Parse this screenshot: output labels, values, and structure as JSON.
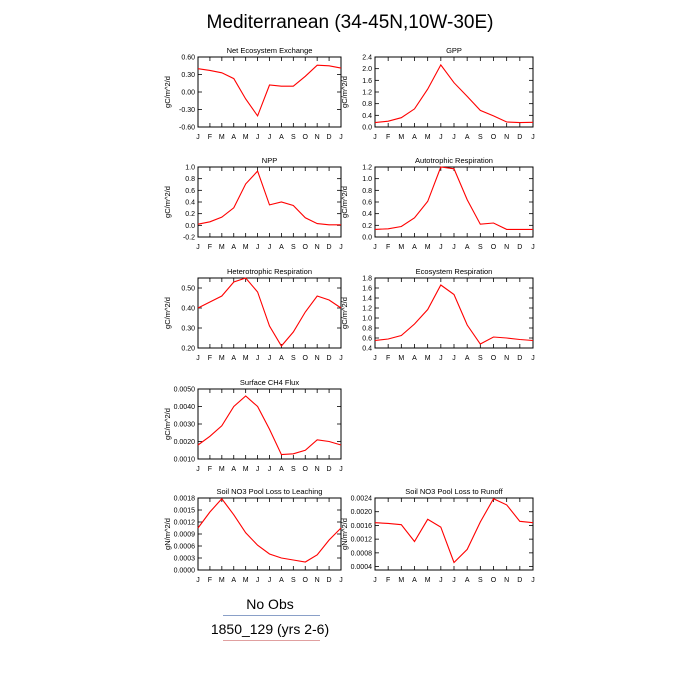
{
  "page_title": "Mediterranean (34-45N,10W-30E)",
  "legend": {
    "no_obs": "No Obs",
    "run": "1850_129 (yrs 2-6)"
  },
  "colors": {
    "series": "#ff0000",
    "axis": "#000000"
  },
  "chart_data": [
    {
      "type": "line",
      "title": "Net Ecosystem Exchange",
      "ylabel": "gC/m^2/d",
      "x": [
        "J",
        "F",
        "M",
        "A",
        "M",
        "J",
        "J",
        "A",
        "S",
        "O",
        "N",
        "D",
        "J"
      ],
      "ylim": [
        -0.6,
        0.6
      ],
      "yticks": [
        0.6,
        0.3,
        0.0,
        -0.3,
        -0.6
      ],
      "ytick_labels": [
        "0.60",
        "0.30",
        "0.00",
        "-0.30",
        "-0.60"
      ],
      "series": [
        {
          "values": [
            0.4,
            0.37,
            0.33,
            0.23,
            -0.12,
            -0.41,
            0.12,
            0.1,
            0.1,
            0.27,
            0.46,
            0.45,
            0.41
          ]
        }
      ]
    },
    {
      "type": "line",
      "title": "GPP",
      "ylabel": "gC/m^2/d",
      "x": [
        "J",
        "F",
        "M",
        "A",
        "M",
        "J",
        "J",
        "A",
        "S",
        "O",
        "N",
        "D",
        "J"
      ],
      "ylim": [
        0.0,
        2.4
      ],
      "yticks": [
        2.4,
        2.0,
        1.6,
        1.2,
        0.8,
        0.4,
        0.0
      ],
      "ytick_labels": [
        "2.4",
        "2.0",
        "1.6",
        "1.2",
        "0.8",
        "0.4",
        "0.0"
      ],
      "series": [
        {
          "values": [
            0.15,
            0.2,
            0.32,
            0.62,
            1.3,
            2.13,
            1.52,
            1.05,
            0.57,
            0.38,
            0.17,
            0.15,
            0.16
          ]
        }
      ]
    },
    {
      "type": "line",
      "title": "NPP",
      "ylabel": "gC/m^2/d",
      "x": [
        "J",
        "F",
        "M",
        "A",
        "M",
        "J",
        "J",
        "A",
        "S",
        "O",
        "N",
        "D",
        "J"
      ],
      "ylim": [
        -0.2,
        1.0
      ],
      "yticks": [
        1.0,
        0.8,
        0.6,
        0.4,
        0.2,
        0.0,
        -0.2
      ],
      "ytick_labels": [
        "1.0",
        "0.8",
        "0.6",
        "0.4",
        "0.2",
        "0.0",
        "-0.2"
      ],
      "series": [
        {
          "values": [
            0.02,
            0.06,
            0.14,
            0.3,
            0.71,
            0.93,
            0.35,
            0.4,
            0.34,
            0.13,
            0.03,
            0.01,
            0.01
          ]
        }
      ]
    },
    {
      "type": "line",
      "title": "Autotrophic Respiration",
      "ylabel": "gC/m^2/d",
      "x": [
        "J",
        "F",
        "M",
        "A",
        "M",
        "J",
        "J",
        "A",
        "S",
        "O",
        "N",
        "D",
        "J"
      ],
      "ylim": [
        0.0,
        1.2
      ],
      "yticks": [
        1.2,
        1.0,
        0.8,
        0.6,
        0.4,
        0.2,
        0.0
      ],
      "ytick_labels": [
        "1.2",
        "1.0",
        "0.8",
        "0.6",
        "0.4",
        "0.2",
        "0.0"
      ],
      "series": [
        {
          "values": [
            0.13,
            0.14,
            0.18,
            0.33,
            0.61,
            1.2,
            1.17,
            0.64,
            0.22,
            0.24,
            0.13,
            0.13,
            0.13
          ]
        }
      ]
    },
    {
      "type": "line",
      "title": "Heterotrophic Respiration",
      "ylabel": "gC/m^2/d",
      "x": [
        "J",
        "F",
        "M",
        "A",
        "M",
        "J",
        "J",
        "A",
        "S",
        "O",
        "N",
        "D",
        "J"
      ],
      "ylim": [
        0.2,
        0.55
      ],
      "yticks": [
        0.5,
        0.4,
        0.3,
        0.2
      ],
      "ytick_labels": [
        "0.50",
        "0.40",
        "0.30",
        "0.20"
      ],
      "series": [
        {
          "values": [
            0.4,
            0.43,
            0.46,
            0.53,
            0.55,
            0.48,
            0.31,
            0.21,
            0.28,
            0.38,
            0.46,
            0.44,
            0.4
          ]
        }
      ]
    },
    {
      "type": "line",
      "title": "Ecosystem Respiration",
      "ylabel": "gC/m^2/d",
      "x": [
        "J",
        "F",
        "M",
        "A",
        "M",
        "J",
        "J",
        "A",
        "S",
        "O",
        "N",
        "D",
        "J"
      ],
      "ylim": [
        0.4,
        1.8
      ],
      "yticks": [
        1.8,
        1.6,
        1.4,
        1.2,
        1.0,
        0.8,
        0.6,
        0.4
      ],
      "ytick_labels": [
        "1.8",
        "1.6",
        "1.4",
        "1.2",
        "1.0",
        "0.8",
        "0.6",
        "0.4"
      ],
      "series": [
        {
          "values": [
            0.55,
            0.58,
            0.65,
            0.88,
            1.17,
            1.66,
            1.47,
            0.86,
            0.48,
            0.62,
            0.6,
            0.57,
            0.55
          ]
        }
      ]
    },
    {
      "type": "line",
      "title": "Surface CH4 Flux",
      "ylabel": "gC/m^2/d",
      "x": [
        "J",
        "F",
        "M",
        "A",
        "M",
        "J",
        "J",
        "A",
        "S",
        "O",
        "N",
        "D",
        "J"
      ],
      "ylim": [
        0.001,
        0.005
      ],
      "yticks": [
        0.005,
        0.004,
        0.003,
        0.002,
        0.001
      ],
      "ytick_labels": [
        "0.0050",
        "0.0040",
        "0.0030",
        "0.0020",
        "0.0010"
      ],
      "series": [
        {
          "values": [
            0.0018,
            0.0023,
            0.0029,
            0.004,
            0.0046,
            0.004,
            0.0027,
            0.00125,
            0.0013,
            0.0015,
            0.0021,
            0.002,
            0.0018
          ]
        }
      ]
    },
    {
      "type": "line",
      "title": "Soil NO3 Pool Loss to Leaching",
      "ylabel": "gN/m^2/d",
      "x": [
        "J",
        "F",
        "M",
        "A",
        "M",
        "J",
        "J",
        "A",
        "S",
        "O",
        "N",
        "D",
        "J"
      ],
      "ylim": [
        0.0,
        0.0018
      ],
      "yticks": [
        0.0018,
        0.0015,
        0.0012,
        0.0009,
        0.0006,
        0.0003,
        0.0
      ],
      "ytick_labels": [
        "0.0018",
        "0.0015",
        "0.0012",
        "0.0009",
        "0.0006",
        "0.0003",
        "0.0000"
      ],
      "series": [
        {
          "values": [
            0.00105,
            0.00145,
            0.00178,
            0.00138,
            0.00093,
            0.00062,
            0.0004,
            0.0003,
            0.00025,
            0.0002,
            0.00038,
            0.00075,
            0.00105
          ]
        }
      ]
    },
    {
      "type": "line",
      "title": "Soil NO3 Pool Loss to Runoff",
      "ylabel": "gN/m^2/d",
      "x": [
        "J",
        "F",
        "M",
        "A",
        "M",
        "J",
        "J",
        "A",
        "S",
        "O",
        "N",
        "D",
        "J"
      ],
      "ylim": [
        0.0003,
        0.0024
      ],
      "yticks": [
        0.0024,
        0.002,
        0.0016,
        0.0012,
        0.0008,
        0.0004
      ],
      "ytick_labels": [
        "0.0024",
        "0.0020",
        "0.0016",
        "0.0012",
        "0.0008",
        "0.0004"
      ],
      "series": [
        {
          "values": [
            0.00168,
            0.00166,
            0.00162,
            0.00113,
            0.00178,
            0.00155,
            0.00052,
            0.0009,
            0.0017,
            0.00238,
            0.0022,
            0.00172,
            0.00168
          ]
        }
      ]
    }
  ]
}
